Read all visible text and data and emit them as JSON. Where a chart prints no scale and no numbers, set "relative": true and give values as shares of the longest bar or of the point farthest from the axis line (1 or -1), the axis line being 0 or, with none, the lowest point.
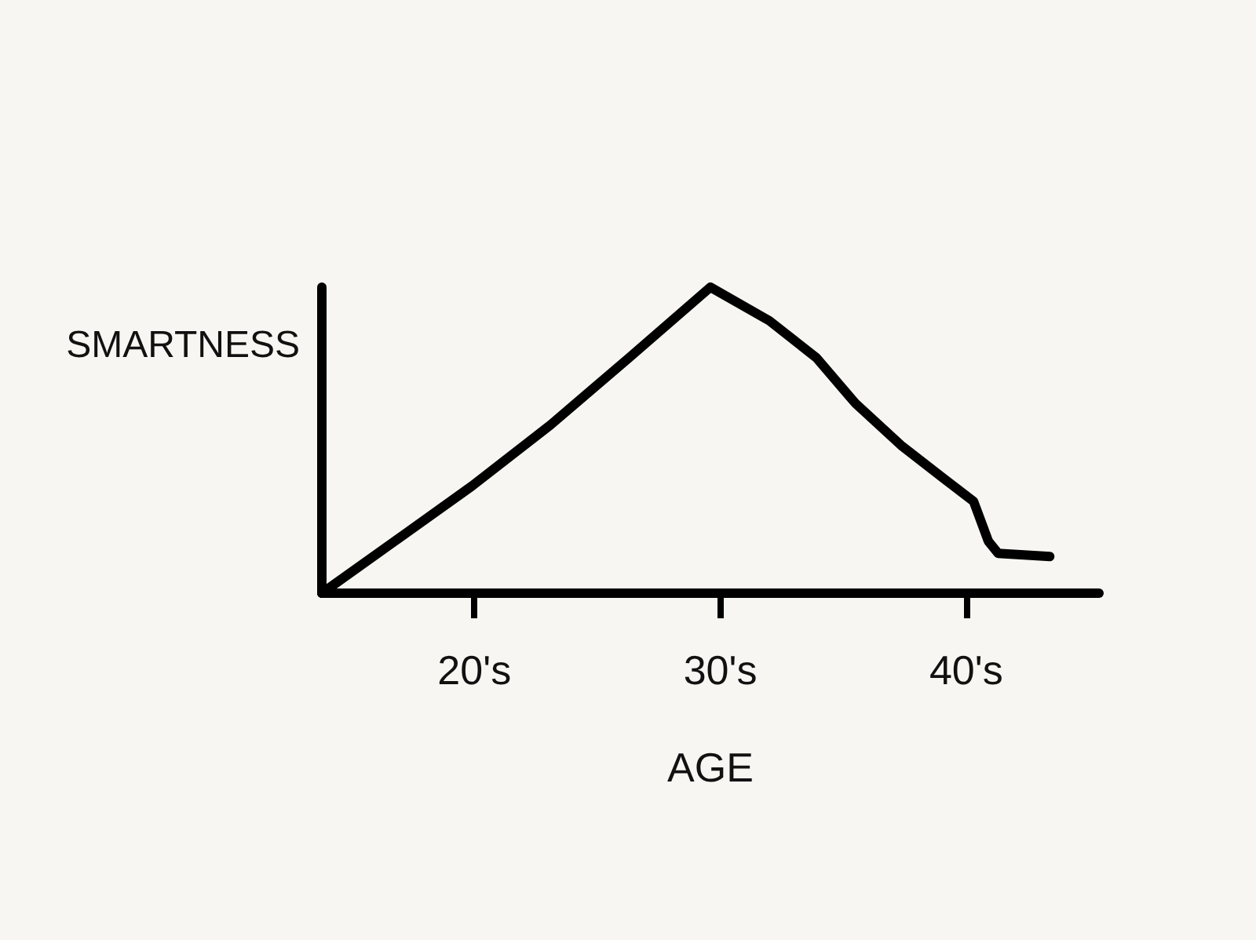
{
  "chart_data": {
    "type": "line",
    "relative": true,
    "xlabel": "AGE",
    "ylabel": "SMARTNESS",
    "x": [
      13.8,
      19.9,
      23.1,
      26.3,
      29.6,
      32.0,
      33.9,
      35.5,
      37.4,
      39.0,
      40.3,
      40.9,
      41.3,
      43.4
    ],
    "series": [
      {
        "color": "#000000",
        "values": [
          0,
          0.35,
          0.55,
          0.77,
          1,
          0.89,
          0.77,
          0.62,
          0.48,
          0.38,
          0.3,
          0.17,
          0.13,
          0.12
        ]
      }
    ],
    "xlim": [
      13.8,
      45.4
    ],
    "xticks": [
      {
        "value": 20,
        "label": "20's"
      },
      {
        "value": 30,
        "label": "30's"
      },
      {
        "value": 40,
        "label": "40's"
      }
    ],
    "marker": "none",
    "line_style": "solid"
  }
}
